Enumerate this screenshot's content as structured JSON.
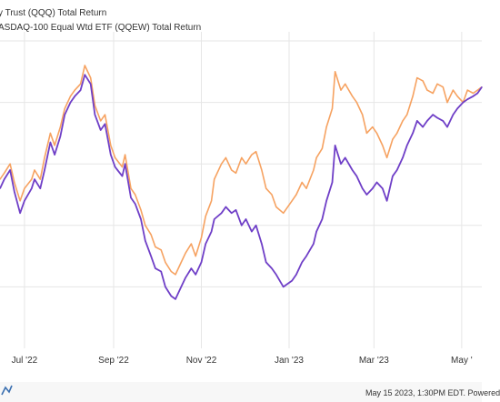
{
  "legend": [
    {
      "label": "y Trust (QQQ) Total Return",
      "color": "#f6a261"
    },
    {
      "label": "ASDAQ-100 Equal Wtd ETF (QQEW) Total Return",
      "color": "#6f3fc7"
    }
  ],
  "footer": {
    "credit": "May 15 2023, 1:30PM EDT. Powered"
  },
  "colors": {
    "qqq": "#f6a261",
    "qqew": "#6f3fc7",
    "grid": "#e6e6e6",
    "axis_text": "#333333"
  },
  "chart_data": {
    "type": "line",
    "title": "",
    "xlabel": "",
    "ylabel": "",
    "x_tick_labels": [
      "Jul '22",
      "Sep '22",
      "Nov '22",
      "Jan '23",
      "Mar '23",
      "May '"
    ],
    "x_tick_dates": [
      "2022-07-01",
      "2022-09-01",
      "2022-11-01",
      "2023-01-01",
      "2023-03-01",
      "2023-05-01"
    ],
    "x_domain": [
      "2022-06-14",
      "2023-05-15"
    ],
    "y_axis_labels_visible": false,
    "grid": true,
    "legend_position": "top-left",
    "series": [
      {
        "name": "y Trust (QQQ) Total Return",
        "color": "#f6a261",
        "points": [
          [
            "2022-06-14",
            55
          ],
          [
            "2022-06-17",
            57
          ],
          [
            "2022-06-21",
            60
          ],
          [
            "2022-06-24",
            54
          ],
          [
            "2022-06-28",
            48
          ],
          [
            "2022-07-01",
            52
          ],
          [
            "2022-07-06",
            55
          ],
          [
            "2022-07-08",
            58
          ],
          [
            "2022-07-12",
            55
          ],
          [
            "2022-07-15",
            62
          ],
          [
            "2022-07-19",
            70
          ],
          [
            "2022-07-22",
            66
          ],
          [
            "2022-07-26",
            72
          ],
          [
            "2022-07-29",
            78
          ],
          [
            "2022-08-02",
            82
          ],
          [
            "2022-08-05",
            84
          ],
          [
            "2022-08-09",
            86
          ],
          [
            "2022-08-12",
            92
          ],
          [
            "2022-08-16",
            88
          ],
          [
            "2022-08-19",
            79
          ],
          [
            "2022-08-23",
            74
          ],
          [
            "2022-08-26",
            76
          ],
          [
            "2022-08-30",
            66
          ],
          [
            "2022-09-02",
            62
          ],
          [
            "2022-09-07",
            59
          ],
          [
            "2022-09-09",
            63
          ],
          [
            "2022-09-13",
            52
          ],
          [
            "2022-09-16",
            50
          ],
          [
            "2022-09-20",
            45
          ],
          [
            "2022-09-23",
            40
          ],
          [
            "2022-09-27",
            37
          ],
          [
            "2022-09-30",
            33
          ],
          [
            "2022-10-04",
            32
          ],
          [
            "2022-10-07",
            28
          ],
          [
            "2022-10-11",
            25
          ],
          [
            "2022-10-14",
            24
          ],
          [
            "2022-10-18",
            28
          ],
          [
            "2022-10-21",
            31
          ],
          [
            "2022-10-25",
            34
          ],
          [
            "2022-10-28",
            30
          ],
          [
            "2022-11-01",
            36
          ],
          [
            "2022-11-04",
            43
          ],
          [
            "2022-11-08",
            48
          ],
          [
            "2022-11-10",
            55
          ],
          [
            "2022-11-15",
            60
          ],
          [
            "2022-11-18",
            62
          ],
          [
            "2022-11-22",
            58
          ],
          [
            "2022-11-25",
            57
          ],
          [
            "2022-11-29",
            62
          ],
          [
            "2022-12-02",
            60
          ],
          [
            "2022-12-06",
            63
          ],
          [
            "2022-12-09",
            64
          ],
          [
            "2022-12-13",
            58
          ],
          [
            "2022-12-16",
            52
          ],
          [
            "2022-12-20",
            50
          ],
          [
            "2022-12-23",
            46
          ],
          [
            "2022-12-28",
            44
          ],
          [
            "2023-01-03",
            48
          ],
          [
            "2023-01-06",
            50
          ],
          [
            "2023-01-10",
            54
          ],
          [
            "2023-01-13",
            52
          ],
          [
            "2023-01-18",
            58
          ],
          [
            "2023-01-20",
            62
          ],
          [
            "2023-01-24",
            65
          ],
          [
            "2023-01-27",
            72
          ],
          [
            "2023-01-31",
            78
          ],
          [
            "2023-02-02",
            90
          ],
          [
            "2023-02-06",
            84
          ],
          [
            "2023-02-09",
            86
          ],
          [
            "2023-02-14",
            82
          ],
          [
            "2023-02-17",
            80
          ],
          [
            "2023-02-21",
            76
          ],
          [
            "2023-02-24",
            70
          ],
          [
            "2023-02-28",
            72
          ],
          [
            "2023-03-03",
            70
          ],
          [
            "2023-03-07",
            66
          ],
          [
            "2023-03-10",
            62
          ],
          [
            "2023-03-14",
            68
          ],
          [
            "2023-03-17",
            70
          ],
          [
            "2023-03-21",
            74
          ],
          [
            "2023-03-24",
            76
          ],
          [
            "2023-03-28",
            82
          ],
          [
            "2023-03-31",
            88
          ],
          [
            "2023-04-04",
            87
          ],
          [
            "2023-04-07",
            84
          ],
          [
            "2023-04-11",
            83
          ],
          [
            "2023-04-14",
            86
          ],
          [
            "2023-04-18",
            85
          ],
          [
            "2023-04-21",
            80
          ],
          [
            "2023-04-25",
            84
          ],
          [
            "2023-04-28",
            82
          ],
          [
            "2023-05-02",
            80
          ],
          [
            "2023-05-05",
            84
          ],
          [
            "2023-05-09",
            83
          ],
          [
            "2023-05-12",
            84
          ],
          [
            "2023-05-15",
            85
          ]
        ]
      },
      {
        "name": "ASDAQ-100 Equal Wtd ETF (QQEW) Total Return",
        "color": "#6f3fc7",
        "points": [
          [
            "2022-06-14",
            52
          ],
          [
            "2022-06-17",
            55
          ],
          [
            "2022-06-21",
            58
          ],
          [
            "2022-06-24",
            51
          ],
          [
            "2022-06-28",
            44
          ],
          [
            "2022-07-01",
            48
          ],
          [
            "2022-07-06",
            52
          ],
          [
            "2022-07-08",
            55
          ],
          [
            "2022-07-12",
            52
          ],
          [
            "2022-07-15",
            58
          ],
          [
            "2022-07-19",
            67
          ],
          [
            "2022-07-22",
            63
          ],
          [
            "2022-07-26",
            69
          ],
          [
            "2022-07-29",
            76
          ],
          [
            "2022-08-02",
            80
          ],
          [
            "2022-08-05",
            82
          ],
          [
            "2022-08-09",
            84
          ],
          [
            "2022-08-12",
            89
          ],
          [
            "2022-08-16",
            86
          ],
          [
            "2022-08-19",
            76
          ],
          [
            "2022-08-23",
            71
          ],
          [
            "2022-08-26",
            73
          ],
          [
            "2022-08-30",
            63
          ],
          [
            "2022-09-02",
            59
          ],
          [
            "2022-09-07",
            56
          ],
          [
            "2022-09-09",
            60
          ],
          [
            "2022-09-13",
            49
          ],
          [
            "2022-09-16",
            47
          ],
          [
            "2022-09-20",
            42
          ],
          [
            "2022-09-23",
            35
          ],
          [
            "2022-09-27",
            30
          ],
          [
            "2022-09-30",
            26
          ],
          [
            "2022-10-04",
            25
          ],
          [
            "2022-10-07",
            20
          ],
          [
            "2022-10-11",
            17
          ],
          [
            "2022-10-14",
            16
          ],
          [
            "2022-10-18",
            20
          ],
          [
            "2022-10-21",
            23
          ],
          [
            "2022-10-25",
            26
          ],
          [
            "2022-10-28",
            24
          ],
          [
            "2022-11-01",
            28
          ],
          [
            "2022-11-04",
            34
          ],
          [
            "2022-11-08",
            38
          ],
          [
            "2022-11-10",
            42
          ],
          [
            "2022-11-15",
            44
          ],
          [
            "2022-11-18",
            46
          ],
          [
            "2022-11-22",
            44
          ],
          [
            "2022-11-25",
            45
          ],
          [
            "2022-11-29",
            40
          ],
          [
            "2022-12-02",
            42
          ],
          [
            "2022-12-06",
            38
          ],
          [
            "2022-12-09",
            40
          ],
          [
            "2022-12-13",
            34
          ],
          [
            "2022-12-16",
            28
          ],
          [
            "2022-12-20",
            26
          ],
          [
            "2022-12-23",
            24
          ],
          [
            "2022-12-28",
            20
          ],
          [
            "2023-01-03",
            22
          ],
          [
            "2023-01-06",
            24
          ],
          [
            "2023-01-10",
            28
          ],
          [
            "2023-01-13",
            30
          ],
          [
            "2023-01-18",
            34
          ],
          [
            "2023-01-20",
            38
          ],
          [
            "2023-01-24",
            42
          ],
          [
            "2023-01-27",
            48
          ],
          [
            "2023-01-31",
            54
          ],
          [
            "2023-02-02",
            66
          ],
          [
            "2023-02-06",
            60
          ],
          [
            "2023-02-09",
            62
          ],
          [
            "2023-02-14",
            58
          ],
          [
            "2023-02-17",
            56
          ],
          [
            "2023-02-21",
            52
          ],
          [
            "2023-02-24",
            50
          ],
          [
            "2023-02-28",
            52
          ],
          [
            "2023-03-03",
            54
          ],
          [
            "2023-03-07",
            52
          ],
          [
            "2023-03-10",
            48
          ],
          [
            "2023-03-14",
            56
          ],
          [
            "2023-03-17",
            58
          ],
          [
            "2023-03-21",
            62
          ],
          [
            "2023-03-24",
            66
          ],
          [
            "2023-03-28",
            70
          ],
          [
            "2023-03-31",
            74
          ],
          [
            "2023-04-04",
            72
          ],
          [
            "2023-04-07",
            74
          ],
          [
            "2023-04-11",
            76
          ],
          [
            "2023-04-14",
            75
          ],
          [
            "2023-04-18",
            74
          ],
          [
            "2023-04-21",
            72
          ],
          [
            "2023-04-25",
            76
          ],
          [
            "2023-04-28",
            78
          ],
          [
            "2023-05-02",
            80
          ],
          [
            "2023-05-05",
            81
          ],
          [
            "2023-05-09",
            82
          ],
          [
            "2023-05-12",
            83
          ],
          [
            "2023-05-15",
            85
          ]
        ]
      }
    ]
  }
}
